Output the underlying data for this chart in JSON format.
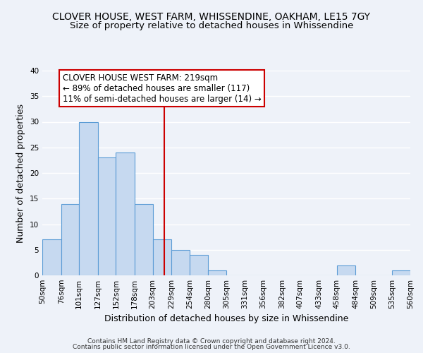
{
  "title": "CLOVER HOUSE, WEST FARM, WHISSENDINE, OAKHAM, LE15 7GY",
  "subtitle": "Size of property relative to detached houses in Whissendine",
  "xlabel": "Distribution of detached houses by size in Whissendine",
  "ylabel": "Number of detached properties",
  "footer_line1": "Contains HM Land Registry data © Crown copyright and database right 2024.",
  "footer_line2": "Contains public sector information licensed under the Open Government Licence v3.0.",
  "bin_labels": [
    "50sqm",
    "76sqm",
    "101sqm",
    "127sqm",
    "152sqm",
    "178sqm",
    "203sqm",
    "229sqm",
    "254sqm",
    "280sqm",
    "305sqm",
    "331sqm",
    "356sqm",
    "382sqm",
    "407sqm",
    "433sqm",
    "458sqm",
    "484sqm",
    "509sqm",
    "535sqm",
    "560sqm"
  ],
  "bar_heights": [
    7,
    14,
    30,
    23,
    24,
    14,
    7,
    5,
    4,
    1,
    0,
    0,
    0,
    0,
    0,
    0,
    2,
    0,
    0,
    1,
    0
  ],
  "bar_color": "#c6d9f0",
  "bar_edge_color": "#5a9bd5",
  "vline_x": 219,
  "vline_color": "#cc0000",
  "annotation_title": "CLOVER HOUSE WEST FARM: 219sqm",
  "annotation_line1": "← 89% of detached houses are smaller (117)",
  "annotation_line2": "11% of semi-detached houses are larger (14) →",
  "annotation_box_color": "#ffffff",
  "annotation_box_edge": "#cc0000",
  "ylim": [
    0,
    40
  ],
  "yticks": [
    0,
    5,
    10,
    15,
    20,
    25,
    30,
    35,
    40
  ],
  "bin_edges": [
    50,
    76,
    101,
    127,
    152,
    178,
    203,
    229,
    254,
    280,
    305,
    331,
    356,
    382,
    407,
    433,
    458,
    484,
    509,
    535,
    560
  ],
  "background_color": "#eef2f9",
  "grid_color": "#ffffff",
  "title_fontsize": 10,
  "subtitle_fontsize": 9.5,
  "axis_label_fontsize": 9,
  "tick_fontsize": 7.5,
  "footer_fontsize": 6.5,
  "annotation_fontsize": 8.5
}
